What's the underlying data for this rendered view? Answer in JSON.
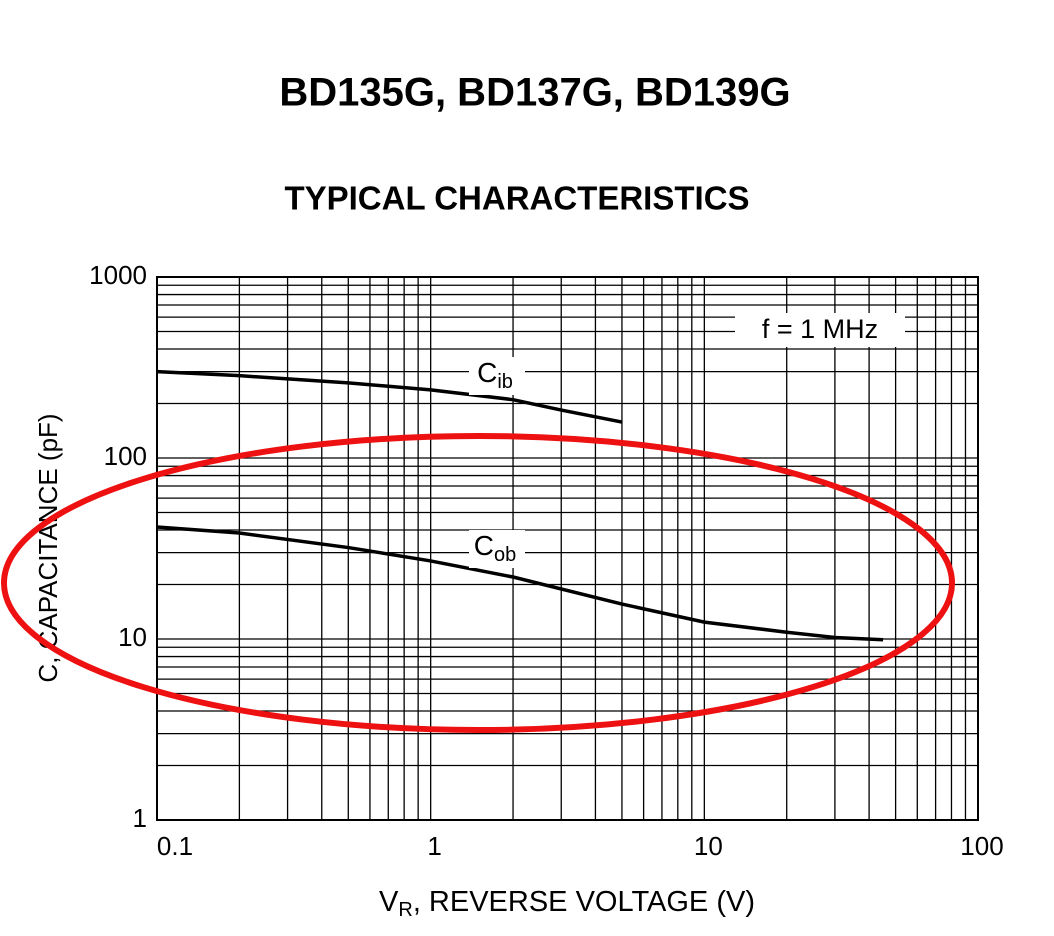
{
  "chart_data": {
    "type": "line",
    "title": "BD135G, BD137G, BD139G",
    "subtitle": "TYPICAL CHARACTERISTICS",
    "xlabel": {
      "main": "V",
      "sub": "R",
      "rest": ", REVERSE VOLTAGE (V)"
    },
    "ylabel": "C, CAPACITANCE (pF)",
    "annotation": "f = 1 MHz",
    "log_x": true,
    "log_y": true,
    "grid": true,
    "xlim": [
      0.1,
      100
    ],
    "ylim": [
      1,
      1000
    ],
    "xticks": [
      0.1,
      1,
      10,
      100
    ],
    "yticks": [
      1,
      10,
      100,
      1000
    ],
    "xgrid": [
      0.2,
      0.3,
      0.4,
      0.5,
      0.6,
      0.7,
      0.8,
      0.9,
      2,
      3,
      4,
      5,
      6,
      7,
      8,
      9,
      20,
      30,
      40,
      50,
      60,
      70,
      80,
      90
    ],
    "ygrid": [
      2,
      3,
      4,
      5,
      6,
      7,
      8,
      9,
      20,
      30,
      40,
      50,
      60,
      70,
      80,
      90,
      200,
      300,
      400,
      500,
      600,
      700,
      800,
      900
    ],
    "series": [
      {
        "name": {
          "text": "C",
          "sub": "ib"
        },
        "color": "#000000",
        "x": [
          0.1,
          0.2,
          0.5,
          1,
          2,
          3,
          5
        ],
        "values": [
          300,
          285,
          260,
          238,
          210,
          184,
          158
        ]
      },
      {
        "name": {
          "text": "C",
          "sub": "ob"
        },
        "color": "#000000",
        "x": [
          0.1,
          0.2,
          0.5,
          1,
          2,
          5,
          10,
          20,
          30,
          45
        ],
        "values": [
          41.6,
          38.5,
          32,
          27,
          22,
          15.6,
          12.4,
          10.9,
          10.2,
          9.9
        ]
      }
    ]
  }
}
